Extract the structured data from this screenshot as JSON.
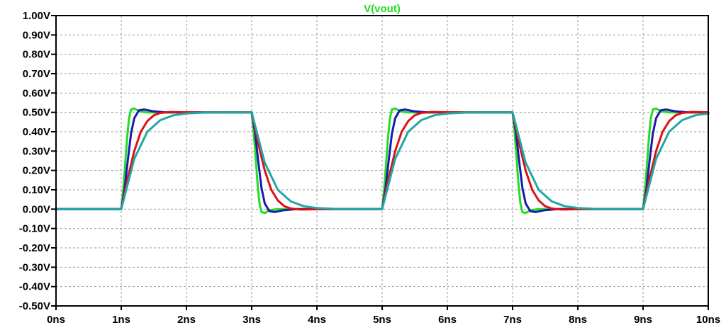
{
  "chart_data": {
    "type": "line",
    "title": "V(vout)",
    "title_color": "#22dd22",
    "xlabel": "",
    "ylabel": "",
    "xlim": [
      0,
      10
    ],
    "ylim": [
      -0.5,
      1.0
    ],
    "grid": true,
    "x_ticks": [
      0,
      1,
      2,
      3,
      4,
      5,
      6,
      7,
      8,
      9,
      10
    ],
    "x_tick_labels": [
      "0ns",
      "1ns",
      "2ns",
      "3ns",
      "4ns",
      "5ns",
      "6ns",
      "7ns",
      "8ns",
      "9ns",
      "10ns"
    ],
    "y_ticks": [
      1.0,
      0.9,
      0.8,
      0.7,
      0.6,
      0.5,
      0.4,
      0.3,
      0.2,
      0.1,
      0.0,
      -0.1,
      -0.2,
      -0.3,
      -0.4,
      -0.5
    ],
    "y_tick_labels": [
      "1.00V",
      "0.90V",
      "0.80V",
      "0.70V",
      "0.60V",
      "0.50V",
      "0.40V",
      "0.30V",
      "0.20V",
      "0.10V",
      "0.00V",
      "-0.10V",
      "-0.20V",
      "-0.30V",
      "-0.40V",
      "-0.50V"
    ],
    "series": [
      {
        "color": "#22dd22",
        "x": [
          0,
          1.0,
          1.03,
          1.06,
          1.09,
          1.12,
          1.15,
          1.2,
          1.28,
          1.4,
          3.0,
          3.03,
          3.06,
          3.09,
          3.12,
          3.15,
          3.2,
          3.28,
          3.4,
          5.0,
          5.03,
          5.06,
          5.09,
          5.12,
          5.15,
          5.2,
          5.28,
          5.4,
          7.0,
          7.03,
          7.06,
          7.09,
          7.12,
          7.15,
          7.2,
          7.28,
          7.4,
          9.0,
          9.03,
          9.06,
          9.09,
          9.12,
          9.15,
          9.2,
          9.28,
          9.4,
          10.0
        ],
        "y": [
          0,
          0,
          0.1,
          0.23,
          0.37,
          0.47,
          0.515,
          0.52,
          0.505,
          0.5,
          0.5,
          0.4,
          0.27,
          0.13,
          0.03,
          -0.015,
          -0.02,
          -0.005,
          0,
          0,
          0.1,
          0.23,
          0.37,
          0.47,
          0.515,
          0.52,
          0.505,
          0.5,
          0.5,
          0.4,
          0.27,
          0.13,
          0.03,
          -0.015,
          -0.02,
          -0.005,
          0,
          0,
          0.1,
          0.23,
          0.37,
          0.47,
          0.515,
          0.52,
          0.505,
          0.5,
          0.5
        ]
      },
      {
        "color": "#1a1ab0",
        "x": [
          0,
          1.0,
          1.05,
          1.1,
          1.15,
          1.2,
          1.27,
          1.35,
          1.5,
          1.7,
          3.0,
          3.05,
          3.1,
          3.15,
          3.2,
          3.27,
          3.35,
          3.5,
          3.7,
          5.0,
          5.05,
          5.1,
          5.15,
          5.2,
          5.27,
          5.35,
          5.5,
          5.7,
          7.0,
          7.05,
          7.1,
          7.15,
          7.2,
          7.27,
          7.35,
          7.5,
          7.7,
          9.0,
          9.05,
          9.1,
          9.15,
          9.2,
          9.27,
          9.35,
          9.5,
          9.7,
          10.0
        ],
        "y": [
          0,
          0,
          0.1,
          0.25,
          0.39,
          0.47,
          0.51,
          0.515,
          0.505,
          0.5,
          0.5,
          0.4,
          0.25,
          0.11,
          0.03,
          -0.01,
          -0.015,
          -0.005,
          0,
          0,
          0.1,
          0.25,
          0.39,
          0.47,
          0.51,
          0.515,
          0.505,
          0.5,
          0.5,
          0.4,
          0.25,
          0.11,
          0.03,
          -0.01,
          -0.015,
          -0.005,
          0,
          0,
          0.1,
          0.25,
          0.39,
          0.47,
          0.51,
          0.515,
          0.505,
          0.5,
          0.5
        ]
      },
      {
        "color": "#dd1111",
        "x": [
          0,
          1.0,
          1.1,
          1.2,
          1.3,
          1.4,
          1.5,
          1.6,
          1.75,
          1.9,
          2.1,
          3.0,
          3.1,
          3.2,
          3.3,
          3.4,
          3.5,
          3.6,
          3.75,
          3.9,
          4.1,
          5.0,
          5.1,
          5.2,
          5.3,
          5.4,
          5.5,
          5.6,
          5.75,
          5.9,
          6.1,
          7.0,
          7.1,
          7.2,
          7.3,
          7.4,
          7.5,
          7.6,
          7.75,
          7.9,
          8.1,
          9.0,
          9.1,
          9.2,
          9.3,
          9.4,
          9.5,
          9.6,
          9.75,
          9.9,
          10.0
        ],
        "y": [
          0,
          0,
          0.16,
          0.3,
          0.4,
          0.455,
          0.485,
          0.497,
          0.502,
          0.501,
          0.5,
          0.5,
          0.34,
          0.2,
          0.1,
          0.045,
          0.015,
          0.003,
          -0.002,
          -0.001,
          0,
          0,
          0.16,
          0.3,
          0.4,
          0.455,
          0.485,
          0.497,
          0.502,
          0.501,
          0.5,
          0.5,
          0.34,
          0.2,
          0.1,
          0.045,
          0.015,
          0.003,
          -0.002,
          -0.001,
          0,
          0,
          0.16,
          0.3,
          0.4,
          0.455,
          0.485,
          0.497,
          0.502,
          0.501,
          0.5
        ]
      },
      {
        "color": "#22a6a6",
        "x": [
          0,
          1.0,
          1.2,
          1.4,
          1.6,
          1.8,
          2.0,
          2.3,
          2.6,
          3.0,
          3.2,
          3.4,
          3.6,
          3.8,
          4.0,
          4.3,
          4.6,
          5.0,
          5.2,
          5.4,
          5.6,
          5.8,
          6.0,
          6.3,
          6.6,
          7.0,
          7.2,
          7.4,
          7.6,
          7.8,
          8.0,
          8.3,
          8.6,
          9.0,
          9.2,
          9.4,
          9.6,
          9.8,
          10.0
        ],
        "y": [
          0,
          0,
          0.26,
          0.4,
          0.46,
          0.485,
          0.494,
          0.499,
          0.5,
          0.5,
          0.24,
          0.1,
          0.04,
          0.015,
          0.006,
          0.001,
          0,
          0,
          0.26,
          0.4,
          0.46,
          0.485,
          0.494,
          0.499,
          0.5,
          0.5,
          0.24,
          0.1,
          0.04,
          0.015,
          0.006,
          0.001,
          0,
          0,
          0.26,
          0.4,
          0.46,
          0.485,
          0.494
        ]
      }
    ]
  }
}
